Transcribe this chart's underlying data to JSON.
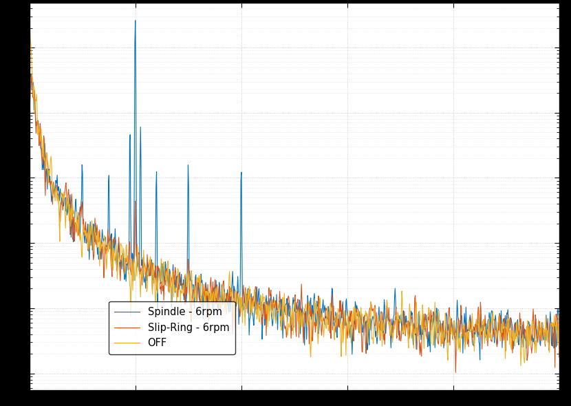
{
  "colors": {
    "spindle": "#0072BD",
    "slipring": "#D95319",
    "off": "#EDB120"
  },
  "legend": [
    "Spindle - 6rpm",
    "Slip-Ring - 6rpm",
    "OFF"
  ],
  "background_color": "#ffffff",
  "grid_color": "#c0c0c0",
  "figsize": [
    8.3,
    5.9
  ],
  "dpi": 100,
  "fs": 1000,
  "nfft": 2048,
  "freq_max": 500,
  "spindle_rpm": 6,
  "seed": 42
}
